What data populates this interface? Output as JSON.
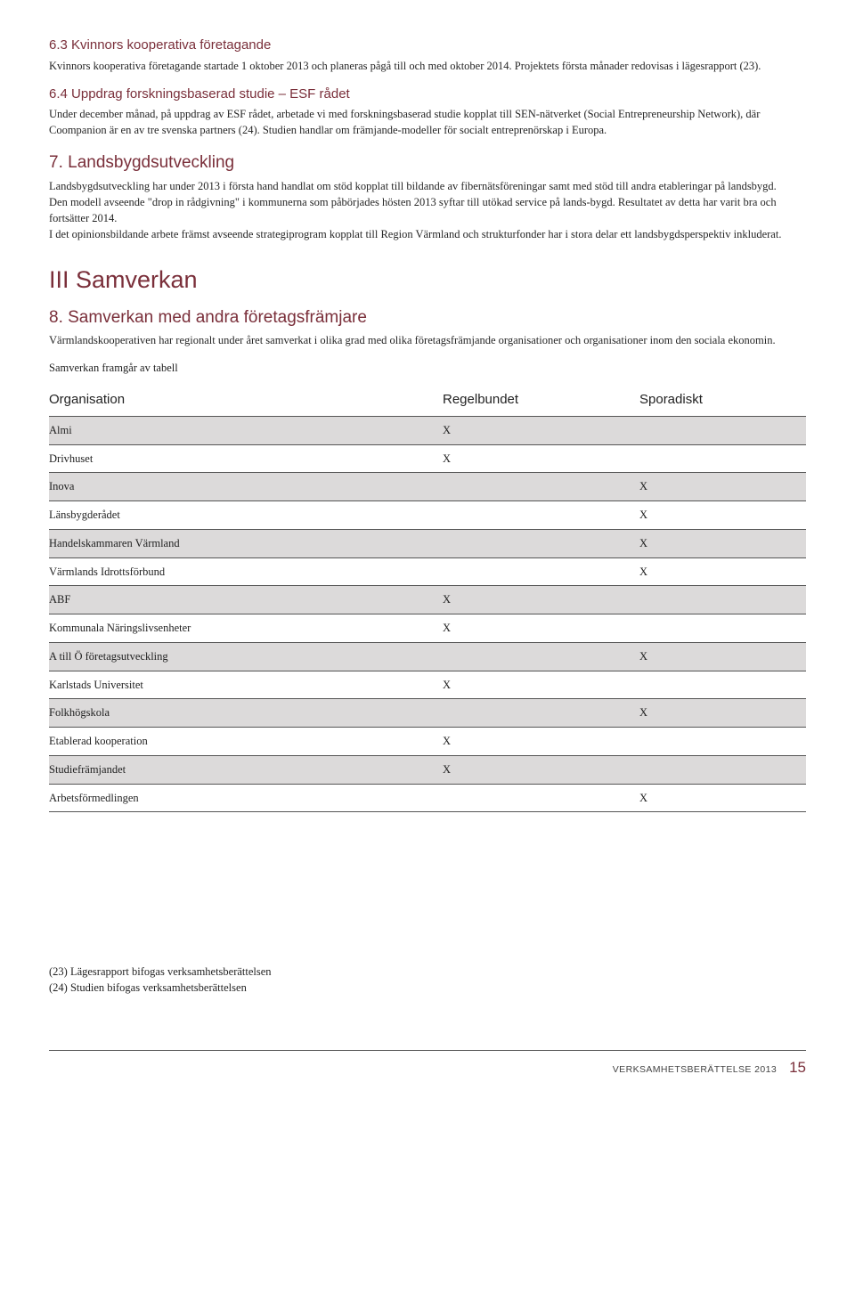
{
  "section63": {
    "heading": "6.3   Kvinnors kooperativa företagande",
    "text": "Kvinnors kooperativa företagande startade 1 oktober 2013 och planeras pågå till och med oktober 2014. Projektets första månader redovisas i lägesrapport (23)."
  },
  "section64": {
    "heading": "6.4   Uppdrag forskningsbaserad studie – ESF rådet",
    "text": "Under december månad, på uppdrag av ESF rådet, arbetade vi med forskningsbaserad studie kopplat till SEN-nätverket (Social Entrepreneurship Network), där Coompanion är en av tre svenska partners (24). Studien handlar om främjande-modeller för socialt entreprenörskap i Europa."
  },
  "section7": {
    "heading": "7.    Landsbygdsutveckling",
    "p1": "Landsbygdsutveckling har under 2013 i första hand handlat om stöd kopplat till bildande av fibernätsföreningar samt med stöd till andra etableringar på landsbygd.",
    "p2": "Den modell avseende \"drop in rådgivning\" i kommunerna som påbörjades hösten 2013 syftar till utökad service på lands-bygd. Resultatet av detta har varit bra och fortsätter 2014.",
    "p3": "I det opinionsbildande arbete främst avseende strategiprogram kopplat till Region Värmland och strukturfonder har i stora delar ett landsbygdsperspektiv inkluderat."
  },
  "sectionIII": {
    "heading": "III   Samverkan"
  },
  "section8": {
    "heading": "8.    Samverkan med andra företagsfrämjare",
    "text": "Värmlandskooperativen har regionalt under året samverkat i olika grad med olika företagsfrämjande organisationer och organisationer inom den sociala ekonomin.",
    "tablelead": "Samverkan framgår av tabell"
  },
  "table": {
    "headers": {
      "org": "Organisation",
      "reg": "Regelbundet",
      "spo": "Sporadiskt"
    },
    "rows": [
      {
        "org": "Almi",
        "reg": "X",
        "spo": "",
        "shaded": true
      },
      {
        "org": "Drivhuset",
        "reg": "X",
        "spo": "",
        "shaded": false
      },
      {
        "org": "Inova",
        "reg": "",
        "spo": "X",
        "shaded": true
      },
      {
        "org": "Länsbygderådet",
        "reg": "",
        "spo": "X",
        "shaded": false
      },
      {
        "org": "Handelskammaren Värmland",
        "reg": "",
        "spo": "X",
        "shaded": true
      },
      {
        "org": "Värmlands Idrottsförbund",
        "reg": "",
        "spo": "X",
        "shaded": false
      },
      {
        "org": "ABF",
        "reg": "X",
        "spo": "",
        "shaded": true
      },
      {
        "org": "Kommunala Näringslivsenheter",
        "reg": "X",
        "spo": "",
        "shaded": false
      },
      {
        "org": "A till Ö företagsutveckling",
        "reg": "",
        "spo": "X",
        "shaded": true
      },
      {
        "org": "Karlstads Universitet",
        "reg": "X",
        "spo": "",
        "shaded": false
      },
      {
        "org": "Folkhögskola",
        "reg": "",
        "spo": "X",
        "shaded": true
      },
      {
        "org": "Etablerad kooperation",
        "reg": "X",
        "spo": "",
        "shaded": false
      },
      {
        "org": "Studiefrämjandet",
        "reg": "X",
        "spo": "",
        "shaded": true
      },
      {
        "org": "Arbetsförmedlingen",
        "reg": "",
        "spo": "X",
        "shaded": false
      }
    ]
  },
  "footnotes": {
    "n23": "(23) Lägesrapport bifogas verksamhetsberättelsen",
    "n24": "(24) Studien bifogas verksamhetsberättelsen"
  },
  "footer": {
    "label": "VERKSAMHETSBERÄTTELSE 2013",
    "page": "15"
  }
}
